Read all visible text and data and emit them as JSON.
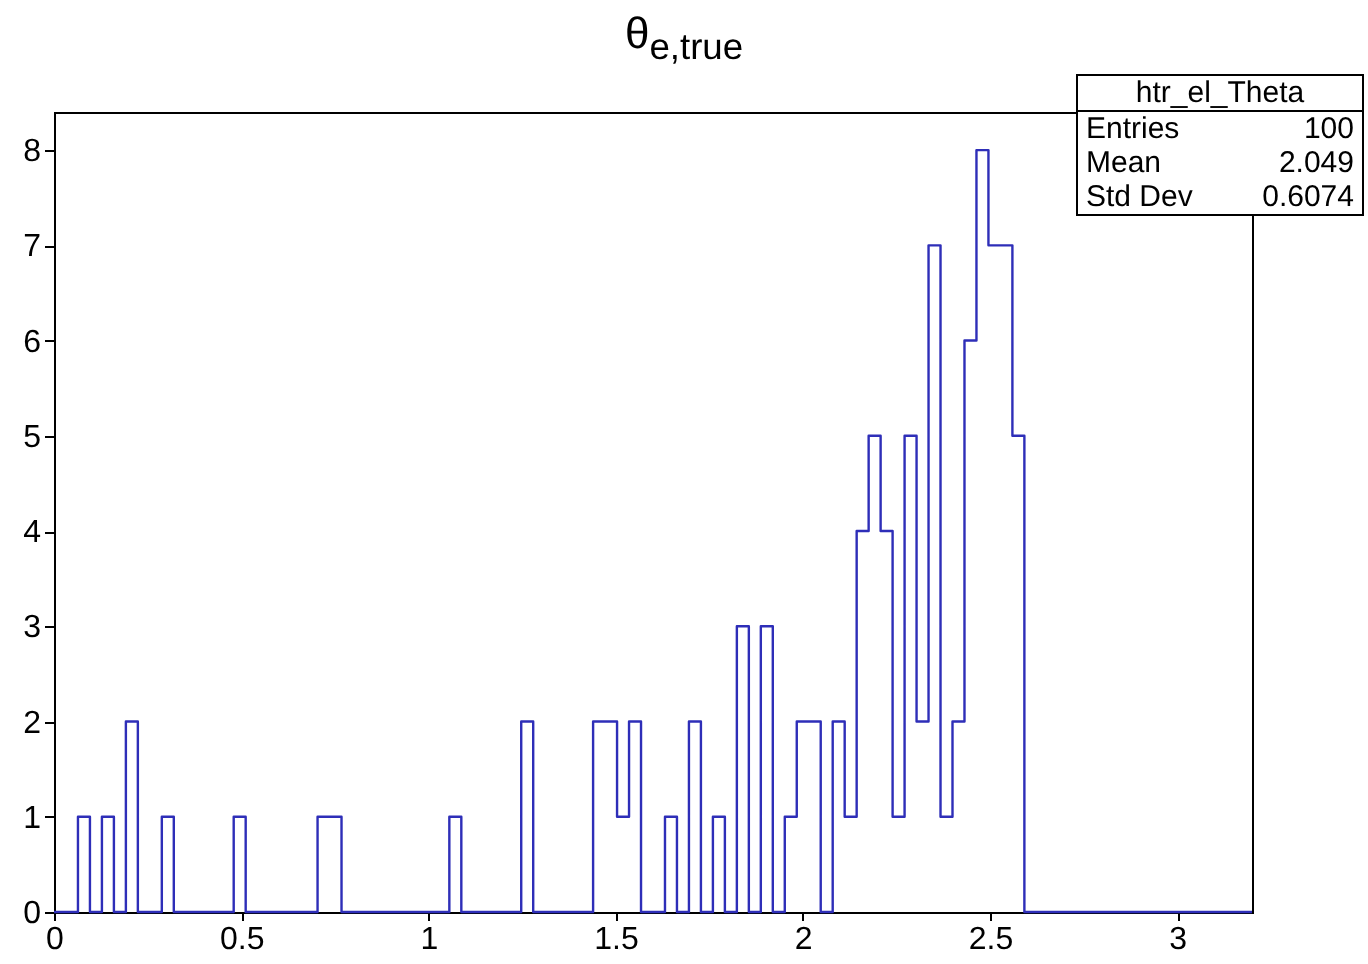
{
  "chart_data": {
    "type": "histogram",
    "title": "θ$_{e,true}$",
    "bins": [
      0,
      0.032,
      0.064,
      0.096,
      0.128,
      0.16,
      0.192,
      0.224,
      0.256,
      0.288,
      0.32,
      0.352,
      0.384,
      0.416,
      0.448,
      0.48,
      0.512,
      0.544,
      0.576,
      0.608,
      0.64,
      0.672,
      0.704,
      0.736,
      0.768,
      0.8,
      0.832,
      0.864,
      0.896,
      0.928,
      0.96,
      0.992,
      1.024,
      1.056,
      1.088,
      1.12,
      1.152,
      1.184,
      1.216,
      1.248,
      1.28,
      1.312,
      1.344,
      1.376,
      1.408,
      1.44,
      1.472,
      1.504,
      1.536,
      1.568,
      1.6,
      1.632,
      1.664,
      1.696,
      1.728,
      1.76,
      1.792,
      1.824,
      1.856,
      1.888,
      1.92,
      1.952,
      1.984,
      2.016,
      2.048,
      2.08,
      2.112,
      2.144,
      2.176,
      2.208,
      2.24,
      2.272,
      2.304,
      2.336,
      2.368,
      2.4,
      2.432,
      2.464,
      2.496,
      2.528,
      2.56,
      2.592,
      2.624,
      2.656,
      2.688,
      2.72,
      2.752,
      2.784,
      2.816,
      2.848,
      2.88,
      2.912,
      2.944,
      2.976,
      3.008,
      3.04,
      3.072,
      3.104,
      3.136,
      3.168,
      3.2
    ],
    "values": [
      0,
      0,
      1,
      0,
      1,
      0,
      2,
      0,
      0,
      1,
      0,
      0,
      0,
      0,
      0,
      1,
      0,
      0,
      0,
      0,
      0,
      0,
      1,
      1,
      0,
      0,
      0,
      0,
      0,
      0,
      0,
      0,
      0,
      1,
      0,
      0,
      0,
      0,
      0,
      2,
      0,
      0,
      0,
      0,
      0,
      2,
      2,
      1,
      2,
      0,
      0,
      1,
      0,
      2,
      0,
      1,
      0,
      3,
      0,
      3,
      0,
      1,
      2,
      2,
      0,
      2,
      1,
      4,
      5,
      4,
      1,
      5,
      2,
      7,
      1,
      2,
      6,
      8,
      7,
      7,
      5,
      0,
      0,
      0,
      0,
      0,
      0,
      0,
      0,
      0,
      0,
      0,
      0,
      0,
      0,
      0,
      0,
      0,
      0,
      0
    ],
    "color": "#2e2eb8",
    "xlim": [
      0,
      3.2
    ],
    "xticks": [
      0,
      0.5,
      1,
      1.5,
      2,
      2.5,
      3
    ],
    "ylim": [
      0,
      8.4
    ],
    "yticks": [
      0,
      1,
      2,
      3,
      4,
      5,
      6,
      7,
      8
    ],
    "grid": false,
    "annotations": [
      "htr_el_Theta",
      "Entries",
      "100",
      "Mean",
      "2.049",
      "Std Dev",
      "0.6074"
    ]
  }
}
